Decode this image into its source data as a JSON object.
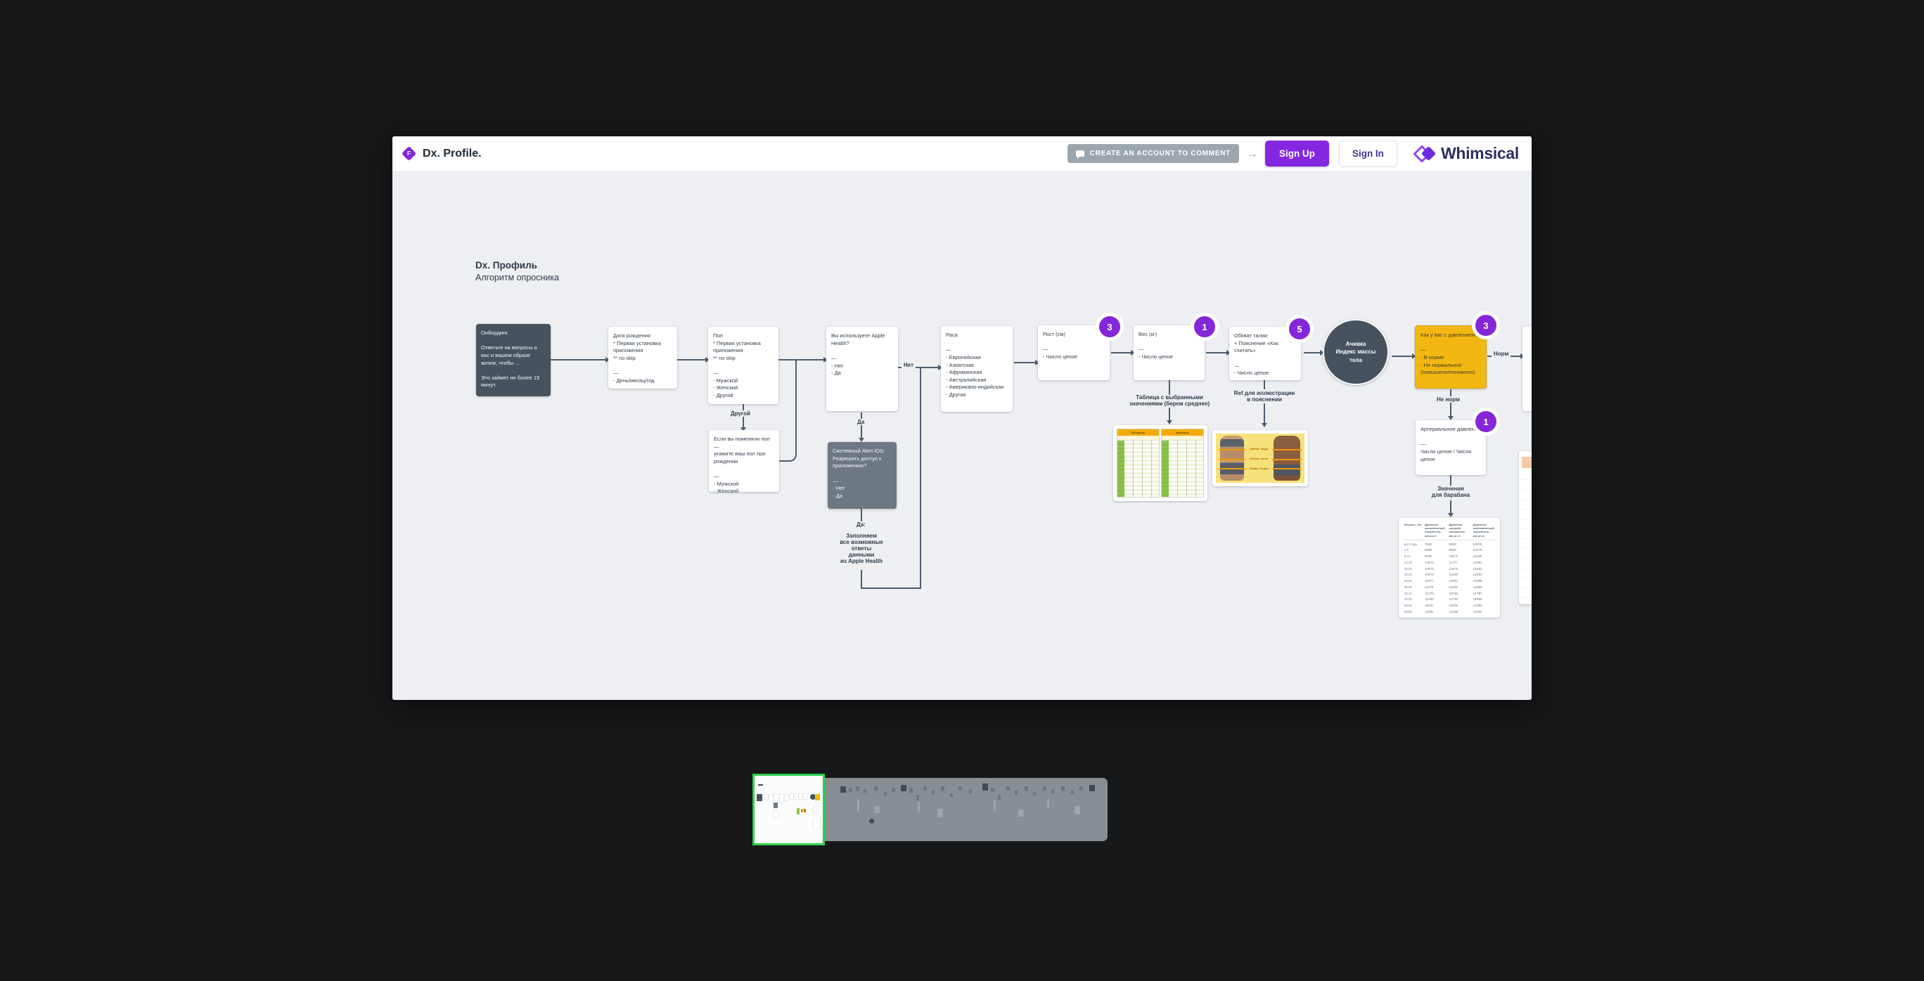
{
  "topbar": {
    "board_icon_letter": "F",
    "board_title": "Dx. Profile.",
    "comment_button_label": "CREATE AN ACCOUNT TO COMMENT",
    "arrow_glyph": "→",
    "sign_up_label": "Sign Up",
    "sign_in_label": "Sign In",
    "brand_name": "Whimsical"
  },
  "heading": {
    "title": "Dx. Профиль",
    "subtitle": "Алгоритм опросника"
  },
  "nodes": {
    "onboarding": "Онбординг.\n\nОтветьте на вопросы о\nвас и вашем образе\nжизни, чтобы ...\n\nЭто займет не более 15\nминут.",
    "birth_date": "Дата рождения\n* Первая установка\nприложения\n** no skip\n\n—\n- День/месяц/год",
    "gender": "Пол\n* Первая установка\nприложения\n** no skip\n\n—\n- Мужской\n- Женский\n- Другой",
    "gender_birth": "Если вы поменяли пол —\nукажите ваш пол при\nрождении\n\n—\n- Мужской\n- Женский",
    "apple_health": "Вы используете Apple\nHealth?\n\n—\n- Нет\n- Да",
    "ios_alert": "Системный Alert iOS:\nРазрешить доступ к\nприложению?\n\n—\n- Нет\n- Да",
    "fill_from_health_note": "Заполняем\nвсе возможные\nответы\nданными\nиз Apple Health",
    "race": "Раса\n\n—\n- Европейская\n- Азиатская\n- Африканская\n- Австралийская\n- Американо-индийская\n- Другая",
    "height": "Рост (см)\n\n—\n- Число целое",
    "weight": "Вес (кг)\n\n—\n- Число целое",
    "waist": "Обхват талии\n+ Пояснение «Как\nсчитать»\n\n—\n- Число целое",
    "bmi_circle": "Ачивка\nИндекс массы\nтела",
    "blood_pressure_question": "Как у вас с давлением?\n\n—\n- В норме\n- Не нормальное\n(повышено/понижено)",
    "blood_pressure_value": "Артериальное давление\n\n—\nЧисло целое / Число\nцелое"
  },
  "edge_labels": {
    "other": "Другой",
    "no": "Нет",
    "yes": "Да",
    "yes_colon": "Да:",
    "norm": "Норм",
    "not_norm": "Не норм"
  },
  "annotations": {
    "avg_table": "Таблица с выбранными\nзначениями (берем среднее)",
    "ref_illustration": "Ref для иллюстрации\nв пояснении",
    "drum_values": "Значения\nдля барабана"
  },
  "badges": {
    "height": "3",
    "weight": "1",
    "waist": "5",
    "pressure": "3",
    "bp_value": "1"
  },
  "weight_table": {
    "header_left": "Женщины",
    "header_right": "Мужчины"
  },
  "torso_card": {
    "labels": [
      "Обхват груди",
      "Обхват талии",
      "Обхват бедер"
    ]
  },
  "bp_table": {
    "headers": [
      "Возраст, лет",
      "Давление минимальный показатель, мм рт.ст.",
      "Давление средний показатель, мм рт.ст.",
      "Давление максимальный показатель, мм рт.ст."
    ],
    "rows": [
      [
        "до 1 года",
        "75/50",
        "90/60",
        "100/75"
      ],
      [
        "1-5",
        "80/55",
        "95/65",
        "110/79"
      ],
      [
        "6-13",
        "90/60",
        "105/70",
        "115/80"
      ],
      [
        "14-19",
        "105/73",
        "117/77",
        "120/81"
      ],
      [
        "20-24",
        "108/75",
        "120/79",
        "132/83"
      ],
      [
        "25-29",
        "109/76",
        "121/80",
        "133/84"
      ],
      [
        "30-34",
        "110/77",
        "122/81",
        "134/85"
      ],
      [
        "35-39",
        "111/78",
        "123/82",
        "135/86"
      ],
      [
        "40-44",
        "112/79",
        "125/83",
        "137/87"
      ],
      [
        "45-49",
        "115/80",
        "127/84",
        "139/88"
      ],
      [
        "50-54",
        "116/81",
        "129/85",
        "142/89"
      ],
      [
        "55-59",
        "118/82",
        "131/86",
        "144/90"
      ],
      [
        "60-64",
        "121/83",
        "134/87",
        "147/91"
      ]
    ]
  },
  "colors": {
    "accent_purple": "#8427e0",
    "badge_purple": "#8527d8",
    "node_dark": "#46525e",
    "node_gray": "#6d7883",
    "sticky_yellow": "#f2b712",
    "minimap_green": "#2bd14c",
    "canvas_gray": "#edeff2",
    "connector": "#4d5c6d"
  }
}
